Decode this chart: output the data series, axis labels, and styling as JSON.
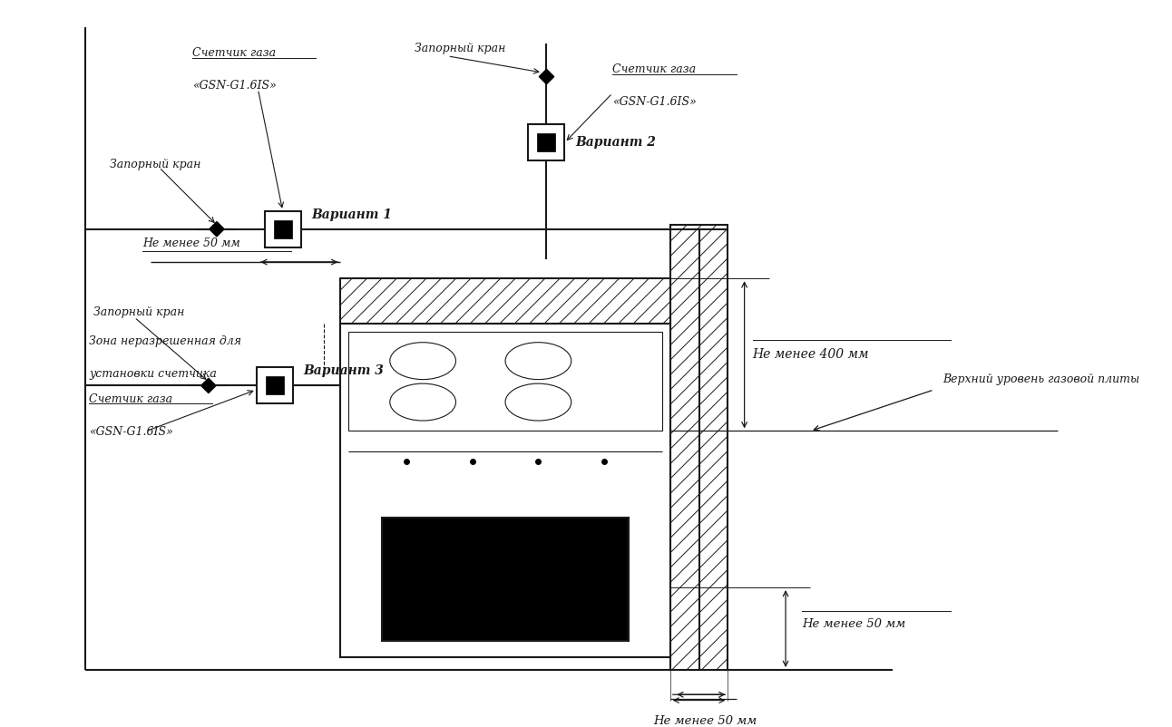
{
  "bg_color": "#ffffff",
  "line_color": "#1a1a1a",
  "hatch_color": "#333333",
  "wall_color": "#f0f0f0",
  "figsize": [
    12.92,
    8.02
  ],
  "dpi": 100,
  "texts": {
    "counter1_line1": "Счетчик газа",
    "counter1_line2": "«GSN-G1.6IS»",
    "zaporniy1": "Запорный кран",
    "variant1": "Вариант 1",
    "zaporniy2": "Запорный кран",
    "counter2_line1": "Счетчик газа",
    "counter2_line2": "«GSN-G1.6IS»",
    "variant2": "Вариант 2",
    "zone_line1": "Зона неразрешенная для",
    "zone_line2": "установки счетчика",
    "zaporniy3": "Запорный кран",
    "variant3": "Вариант 3",
    "counter3_line1": "Счетчик газа",
    "counter3_line2": "«GSN-G1.6IS»",
    "ne_menee_50_h": "Не менее 50 мм",
    "ne_menee_400": "Не менее 400 мм",
    "verhni": "Верхний уровень газовой плиты",
    "ne_menee_50_v": "Не менее 50 мм",
    "ne_menee_50_b": "Не менее 50 мм"
  }
}
